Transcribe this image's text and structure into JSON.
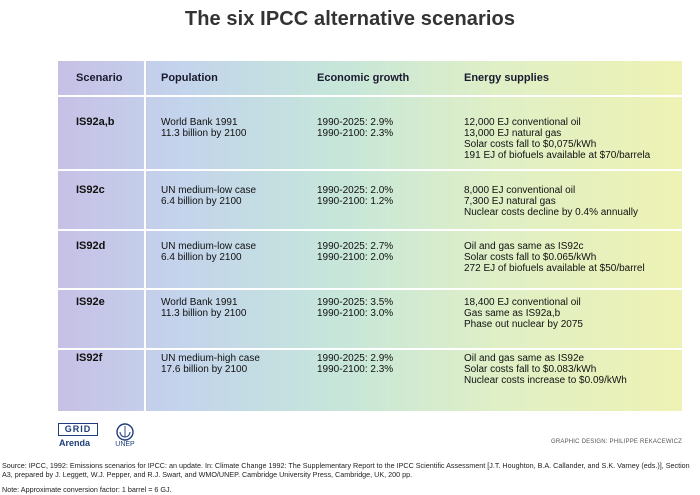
{
  "title": "The six IPCC alternative scenarios",
  "headers": {
    "scenario": "Scenario",
    "population": "Population",
    "economic": "Economic growth",
    "energy": "Energy supplies"
  },
  "rows": [
    {
      "scenario": "IS92a,b",
      "population": [
        "World Bank 1991",
        "11.3 billion by 2100"
      ],
      "economic": [
        "1990-2025: 2.9%",
        "1990-2100: 2.3%"
      ],
      "energy": [
        "12,000 EJ conventional oil",
        "13,000 EJ natural gas",
        "Solar costs fall to $0,075/kWh",
        "191 EJ of biofuels available at $70/barrela"
      ]
    },
    {
      "scenario": "IS92c",
      "population": [
        "UN medium-low case",
        "6.4 billion by 2100"
      ],
      "economic": [
        "1990-2025: 2.0%",
        "1990-2100: 1.2%"
      ],
      "energy": [
        "8,000 EJ conventional oil",
        "7,300 EJ natural gas",
        "Nuclear costs decline by 0.4% annually"
      ]
    },
    {
      "scenario": "IS92d",
      "population": [
        "UN medium-low case",
        "6.4 billion by 2100"
      ],
      "economic": [
        "1990-2025: 2.7%",
        "1990-2100: 2.0%"
      ],
      "energy": [
        "Oil and gas same as IS92c",
        "Solar costs fall to $0.065/kWh",
        "272 EJ of biofuels available at $50/barrel"
      ]
    },
    {
      "scenario": "IS92e",
      "population": [
        "World Bank 1991",
        "11.3 billion by 2100"
      ],
      "economic": [
        "1990-2025: 3.5%",
        "1990-2100: 3.0%"
      ],
      "energy": [
        "18,400 EJ conventional oil",
        "Gas same as IS92a,b",
        "Phase out nuclear by 2075"
      ]
    },
    {
      "scenario": "IS92f",
      "population": [
        "UN medium-high case",
        "17.6 billion by 2100"
      ],
      "economic": [
        "1990-2025: 2.9%",
        "1990-2100: 2.3%"
      ],
      "energy": [
        "Oil and gas same as IS92e",
        "Solar costs fall to $0.083/kWh",
        "Nuclear costs increase to $0.09/kWh"
      ]
    }
  ],
  "logos": {
    "grid": "GRID",
    "arenda": "Arenda",
    "unep": "UNEP"
  },
  "credit": "GRAPHIC DESIGN: PHILIPPE REKACEWICZ",
  "source": "Source: IPCC, 1992: Emissions scenarios for IPCC: an update. In: Climate Change 1992: The Supplementary Report to the IPCC Scientific Assessment [J.T. Houghton, B.A. Callander, and S.K. Varney (eds.)], Section A3, prepared by J. Leggett, W.J. Pepper, and R.J. Swart, and WMO/UNEP. Cambridge University Press, Cambridge, UK, 200 pp.",
  "note": "Note: Approximate conversion factor: 1 barrel = 6 GJ."
}
